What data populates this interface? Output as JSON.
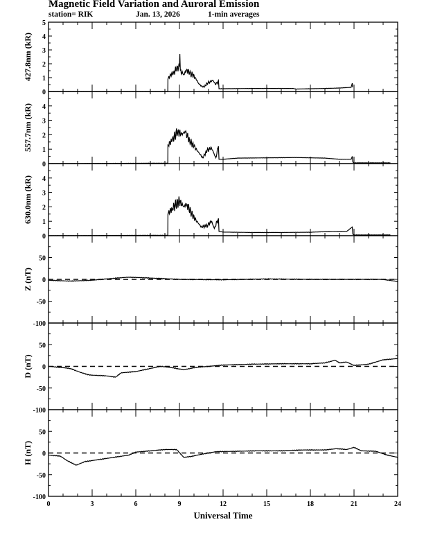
{
  "header": {
    "title": "Magnetic Field Variation and Auroral Emission",
    "station": "station= RIK",
    "date": "Jan. 13, 2026",
    "averaging": "1-min averages"
  },
  "chart_data": {
    "type": "line",
    "xlabel": "Universal Time",
    "xlim": [
      0,
      24
    ],
    "xticks": [
      0,
      3,
      6,
      9,
      12,
      15,
      18,
      21,
      24
    ],
    "panels": [
      {
        "name": "427.8nm",
        "ylabel": "427.8nm (kR)",
        "ylim": [
          0,
          5
        ],
        "yticks": [
          0,
          1,
          2,
          3,
          4,
          5
        ],
        "zero_dashed": false,
        "points": [
          [
            0,
            0
          ],
          [
            8.2,
            0
          ],
          [
            8.21,
            0.9
          ],
          [
            8.4,
            1.2
          ],
          [
            8.6,
            1.4
          ],
          [
            8.8,
            1.6
          ],
          [
            9.0,
            1.8
          ],
          [
            9.03,
            2.7
          ],
          [
            9.06,
            1.5
          ],
          [
            9.3,
            1.2
          ],
          [
            9.5,
            1.6
          ],
          [
            9.7,
            1.3
          ],
          [
            9.9,
            1.2
          ],
          [
            10.1,
            1.0
          ],
          [
            10.3,
            0.6
          ],
          [
            10.5,
            0.4
          ],
          [
            10.7,
            0.3
          ],
          [
            10.9,
            0.6
          ],
          [
            11.1,
            0.7
          ],
          [
            11.3,
            0.8
          ],
          [
            11.5,
            0.5
          ],
          [
            11.68,
            0.8
          ],
          [
            11.72,
            0.2
          ],
          [
            12,
            0.2
          ],
          [
            14,
            0.22
          ],
          [
            16.8,
            0.22
          ],
          [
            17,
            0.18
          ],
          [
            18,
            0.2
          ],
          [
            19,
            0.22
          ],
          [
            20,
            0.25
          ],
          [
            20.8,
            0.3
          ],
          [
            20.88,
            0.6
          ],
          [
            20.9,
            0.3
          ]
        ]
      },
      {
        "name": "557.7nm",
        "ylabel": "557.7nm (kR)",
        "ylim": [
          0,
          5
        ],
        "yticks": [
          0,
          1,
          2,
          3,
          4
        ],
        "zero_dashed": false,
        "points": [
          [
            0,
            0
          ],
          [
            8.0,
            0.03
          ],
          [
            8.2,
            0.03
          ],
          [
            8.21,
            1.3
          ],
          [
            8.5,
            1.6
          ],
          [
            8.9,
            2.3
          ],
          [
            9.1,
            2.0
          ],
          [
            9.4,
            2.2
          ],
          [
            9.7,
            1.6
          ],
          [
            10.0,
            1.2
          ],
          [
            10.3,
            0.8
          ],
          [
            10.6,
            0.4
          ],
          [
            10.9,
            0.9
          ],
          [
            11.2,
            1.1
          ],
          [
            11.5,
            0.4
          ],
          [
            11.68,
            1.2
          ],
          [
            11.72,
            0.3
          ],
          [
            12,
            0.3
          ],
          [
            13,
            0.38
          ],
          [
            15,
            0.4
          ],
          [
            17,
            0.42
          ],
          [
            19,
            0.38
          ],
          [
            20,
            0.3
          ],
          [
            20.8,
            0.3
          ],
          [
            20.88,
            0.5
          ],
          [
            20.92,
            0.1
          ],
          [
            21,
            0.05
          ],
          [
            23.5,
            0.05
          ]
        ]
      },
      {
        "name": "630.0nm",
        "ylabel": "630.0nm (kR)",
        "ylim": [
          0,
          5
        ],
        "yticks": [
          0,
          1,
          2,
          3,
          4
        ],
        "zero_dashed": false,
        "points": [
          [
            0,
            0
          ],
          [
            8.0,
            0.03
          ],
          [
            8.2,
            0.03
          ],
          [
            8.21,
            1.5
          ],
          [
            8.5,
            1.9
          ],
          [
            9.0,
            2.4
          ],
          [
            9.3,
            2.0
          ],
          [
            9.5,
            2.2
          ],
          [
            9.9,
            1.4
          ],
          [
            10.2,
            1.0
          ],
          [
            10.5,
            0.6
          ],
          [
            10.9,
            0.7
          ],
          [
            11.2,
            1.0
          ],
          [
            11.4,
            0.5
          ],
          [
            11.68,
            1.2
          ],
          [
            11.72,
            0.3
          ],
          [
            12,
            0.25
          ],
          [
            14,
            0.22
          ],
          [
            16,
            0.22
          ],
          [
            18,
            0.24
          ],
          [
            19.5,
            0.3
          ],
          [
            20.5,
            0.3
          ],
          [
            20.88,
            0.6
          ],
          [
            20.92,
            0.1
          ],
          [
            21,
            0.05
          ],
          [
            23.5,
            0.05
          ]
        ]
      },
      {
        "name": "Z",
        "ylabel": "Z (nT)",
        "ylim": [
          -100,
          100
        ],
        "yticks": [
          -100,
          -50,
          0,
          50
        ],
        "zero_dashed": true,
        "points": [
          [
            0,
            -2
          ],
          [
            1.5,
            -4
          ],
          [
            3,
            -2
          ],
          [
            4,
            1
          ],
          [
            5.5,
            5
          ],
          [
            7,
            3
          ],
          [
            9,
            0
          ],
          [
            12,
            -1
          ],
          [
            15,
            1
          ],
          [
            18,
            0
          ],
          [
            21,
            0
          ],
          [
            23,
            0
          ],
          [
            24,
            -5
          ]
        ]
      },
      {
        "name": "D",
        "ylabel": "D (nT)",
        "ylim": [
          -100,
          100
        ],
        "yticks": [
          -100,
          -50,
          0,
          50
        ],
        "zero_dashed": true,
        "points": [
          [
            0,
            0
          ],
          [
            1,
            -3
          ],
          [
            1.5,
            -5
          ],
          [
            2.2,
            -14
          ],
          [
            2.8,
            -20
          ],
          [
            4,
            -22
          ],
          [
            4.6,
            -25
          ],
          [
            5,
            -15
          ],
          [
            6,
            -12
          ],
          [
            7,
            -5
          ],
          [
            7.7,
            0
          ],
          [
            8.5,
            -3
          ],
          [
            9.3,
            -8
          ],
          [
            10,
            -3
          ],
          [
            11,
            0
          ],
          [
            12,
            3
          ],
          [
            14,
            5
          ],
          [
            16,
            6
          ],
          [
            18,
            6
          ],
          [
            19,
            8
          ],
          [
            19.7,
            14
          ],
          [
            20,
            8
          ],
          [
            20.5,
            10
          ],
          [
            21,
            2
          ],
          [
            22,
            5
          ],
          [
            23,
            15
          ],
          [
            24,
            18
          ]
        ]
      },
      {
        "name": "H",
        "ylabel": "H (nT)",
        "ylim": [
          -100,
          100
        ],
        "yticks": [
          -100,
          -50,
          0,
          50
        ],
        "zero_dashed": true,
        "points": [
          [
            0,
            -5
          ],
          [
            0.8,
            -7
          ],
          [
            1.3,
            -18
          ],
          [
            1.9,
            -28
          ],
          [
            2.5,
            -20
          ],
          [
            3.5,
            -15
          ],
          [
            4.5,
            -10
          ],
          [
            5.5,
            -5
          ],
          [
            6,
            2
          ],
          [
            7,
            5
          ],
          [
            8,
            8
          ],
          [
            8.8,
            8
          ],
          [
            9.3,
            -10
          ],
          [
            9.8,
            -8
          ],
          [
            10.5,
            -3
          ],
          [
            11.5,
            3
          ],
          [
            13,
            4
          ],
          [
            14.3,
            5
          ],
          [
            16,
            5
          ],
          [
            17.5,
            7
          ],
          [
            19,
            7
          ],
          [
            19.8,
            10
          ],
          [
            20.5,
            8
          ],
          [
            21,
            13
          ],
          [
            21.5,
            5
          ],
          [
            22.5,
            4
          ],
          [
            23.3,
            -5
          ],
          [
            24,
            -10
          ]
        ]
      }
    ]
  }
}
